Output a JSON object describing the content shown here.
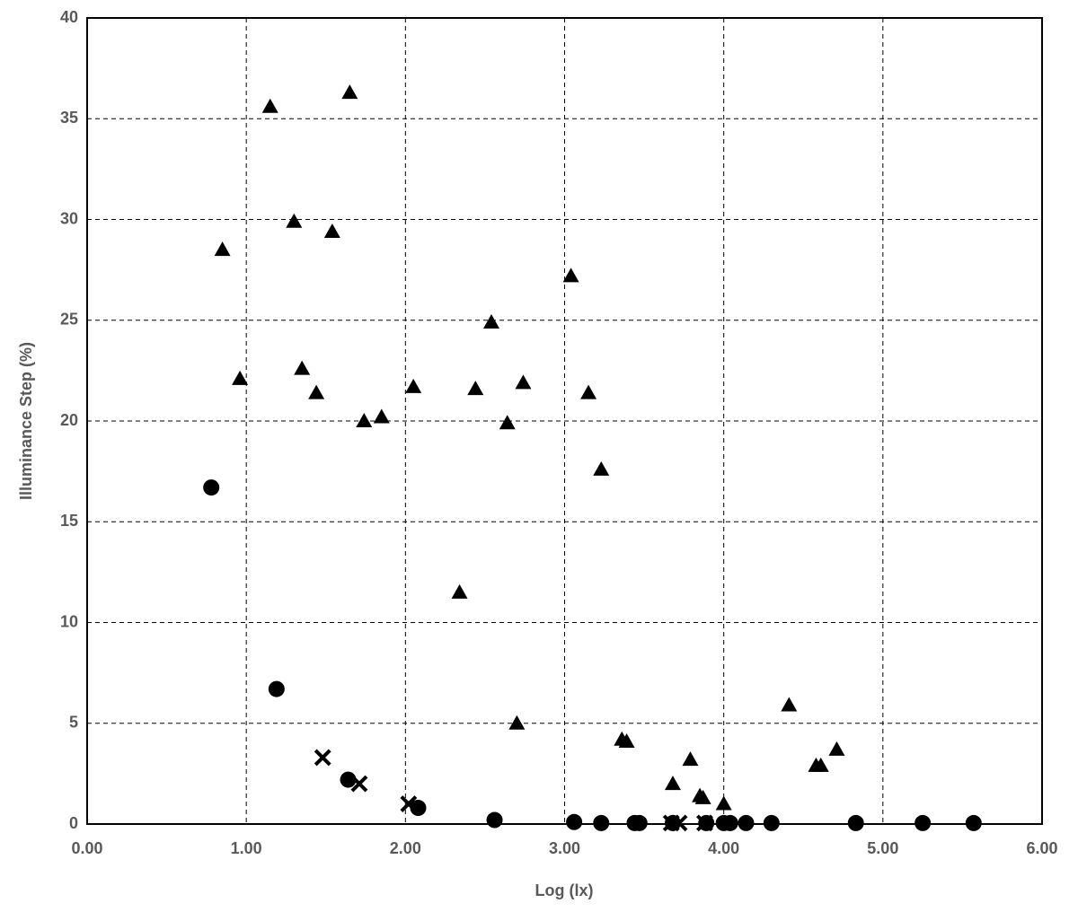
{
  "chart_data": {
    "type": "scatter",
    "x_label": "Log (lx)",
    "y_label": "Illuminance Step (%)",
    "xlim": [
      0,
      6
    ],
    "ylim": [
      0,
      40
    ],
    "xticks": [
      {
        "value": 0,
        "label": "0.00"
      },
      {
        "value": 1,
        "label": "1.00"
      },
      {
        "value": 2,
        "label": "2.00"
      },
      {
        "value": 3,
        "label": "3.00"
      },
      {
        "value": 4,
        "label": "4.00"
      },
      {
        "value": 5,
        "label": "5.00"
      },
      {
        "value": 6,
        "label": "6.00"
      }
    ],
    "yticks": [
      0,
      5,
      10,
      15,
      20,
      25,
      30,
      35,
      40
    ],
    "grid": true,
    "series": [
      {
        "marker": "triangle",
        "color": "#000000",
        "x": [
          0.85,
          0.96,
          1.15,
          1.3,
          1.35,
          1.44,
          1.54,
          1.65,
          1.74,
          1.85,
          2.05,
          2.34,
          2.44,
          2.54,
          2.64,
          2.7,
          2.74,
          3.04,
          3.15,
          3.23,
          3.36,
          3.39,
          3.68,
          3.79,
          3.85,
          3.87,
          4.0,
          4.41,
          4.58,
          4.61,
          4.71
        ],
        "values": [
          28.5,
          22.1,
          35.6,
          29.9,
          22.6,
          21.4,
          29.4,
          36.3,
          20.0,
          20.2,
          21.7,
          11.5,
          21.6,
          24.9,
          19.9,
          5.0,
          21.9,
          27.2,
          21.4,
          17.6,
          4.2,
          4.1,
          2.0,
          3.2,
          1.4,
          1.3,
          1.0,
          5.9,
          2.9,
          2.9,
          3.7
        ]
      },
      {
        "marker": "circle",
        "color": "#000000",
        "x": [
          0.78,
          1.19,
          1.64,
          2.08,
          2.56,
          3.06,
          3.23,
          3.44,
          3.47,
          3.68,
          3.89,
          4.0,
          4.04,
          4.14,
          4.3,
          4.83,
          5.25,
          5.57
        ],
        "values": [
          16.7,
          6.7,
          2.2,
          0.8,
          0.2,
          0.1,
          0.05,
          0.05,
          0.05,
          0.05,
          0.05,
          0.05,
          0.05,
          0.05,
          0.05,
          0.05,
          0.05,
          0.05
        ]
      },
      {
        "marker": "cross",
        "color": "#000000",
        "x": [
          1.48,
          1.71,
          2.02,
          3.67,
          3.72,
          3.88
        ],
        "values": [
          3.3,
          2.0,
          1.0,
          0.05,
          0.05,
          0.05
        ]
      }
    ]
  }
}
